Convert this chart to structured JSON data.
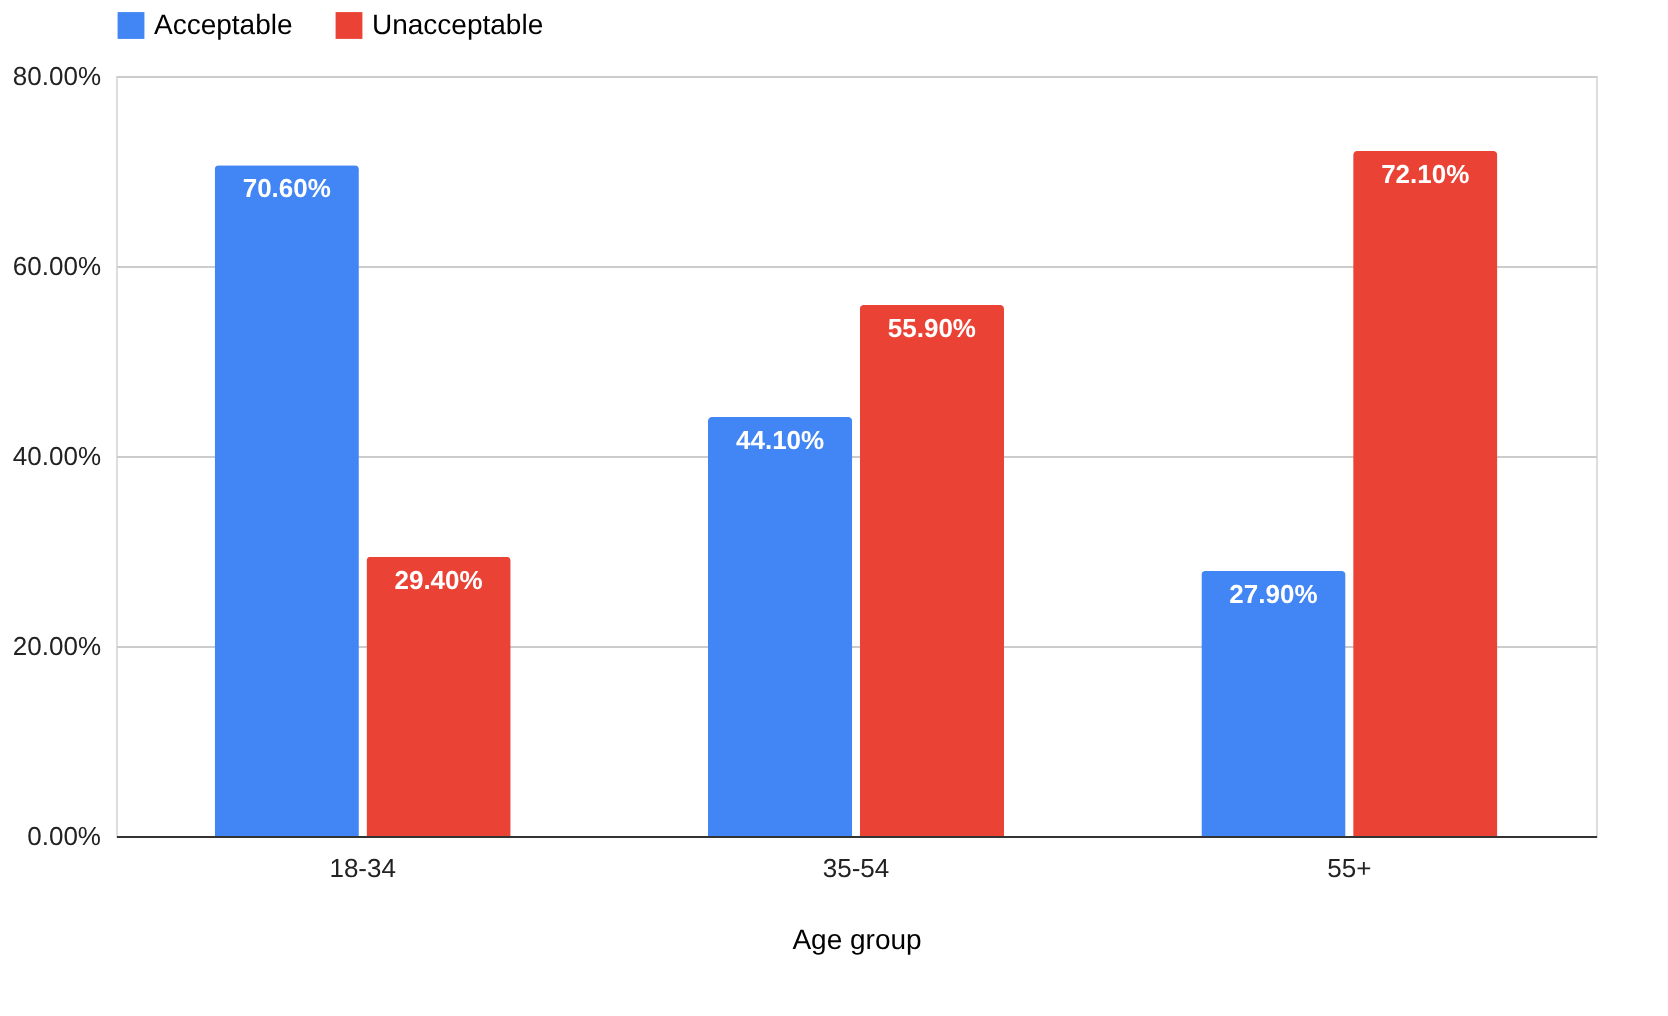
{
  "chart_data": {
    "type": "bar",
    "xlabel": "Age group",
    "categories": [
      "18-34",
      "35-54",
      "55+"
    ],
    "series": [
      {
        "name": "Acceptable",
        "color": "#4285f4",
        "values": [
          70.6,
          44.1,
          27.9
        ],
        "value_labels": [
          "70.60%",
          "44.10%",
          "27.90%"
        ]
      },
      {
        "name": "Unacceptable",
        "color": "#ea4335",
        "values": [
          29.4,
          55.9,
          72.1
        ],
        "value_labels": [
          "29.40%",
          "55.90%",
          "72.10%"
        ]
      }
    ],
    "ylim": [
      0,
      80
    ],
    "yticks": [
      {
        "value": 0,
        "label": "0.00%"
      },
      {
        "value": 20,
        "label": "20.00%"
      },
      {
        "value": 40,
        "label": "40.00%"
      },
      {
        "value": 60,
        "label": "60.00%"
      },
      {
        "value": 80,
        "label": "80.00%"
      }
    ],
    "grid": "y",
    "legend": "top"
  }
}
